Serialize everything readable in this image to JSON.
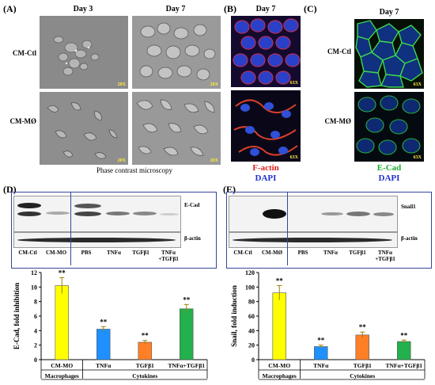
{
  "panels": {
    "A": {
      "label": "(A)",
      "day3": "Day 3",
      "day7": "Day 7",
      "row1": "CM-Ctl",
      "row2": "CM-MØ",
      "mag": "20X",
      "caption": "Phase contrast microscopy"
    },
    "B": {
      "label": "(B)",
      "day": "Day 7",
      "mag": "63X",
      "stain1": "F-actin",
      "stain2": "DAPI"
    },
    "C": {
      "label": "(C)",
      "day": "Day 7",
      "row1": "CM-Ctl",
      "row2": "CM-MØ",
      "mag": "63X",
      "stain1": "E-Cad",
      "stain2": "DAPI"
    },
    "D": {
      "label": "(D)",
      "band1": "E-Cad",
      "band2": "β-actin",
      "lanes": [
        "CM-Ctl",
        "CM-MO",
        "PBS",
        "TNFα",
        "TGFβ1",
        "TNFα +TGFβ1"
      ]
    },
    "E": {
      "label": "(E)",
      "band1": "Snail1",
      "band2": "β-actin",
      "lanes": [
        "CM-Ctl",
        "CM-MØ",
        "PBS",
        "TNFα",
        "TGFβ1",
        "TNFα +TGFβ1"
      ]
    }
  },
  "chart_data": [
    {
      "type": "bar",
      "categories": [
        "CM-MO",
        "TNFα",
        "TGFβ1",
        "TNFα+TGFβ1"
      ],
      "values": [
        10.2,
        4.2,
        2.4,
        7.0
      ],
      "errors": [
        1.1,
        0.35,
        0.25,
        0.6
      ],
      "colors": [
        "#ffff00",
        "#1e90ff",
        "#ff7f27",
        "#22b14c"
      ],
      "annotations": [
        "**",
        "**",
        "**",
        "**"
      ],
      "ylabel": "E-Cad, fold inhibition",
      "ylim": [
        0,
        12
      ],
      "yticks": [
        0,
        2,
        4,
        6,
        8,
        10,
        12
      ],
      "groups": [
        {
          "label": "Macrophages",
          "span": [
            0,
            0
          ]
        },
        {
          "label": "Cytokines",
          "span": [
            1,
            3
          ]
        }
      ]
    },
    {
      "type": "bar",
      "categories": [
        "CM-MO",
        "TNFα",
        "TGFβ1",
        "TNFα+TGFβ1"
      ],
      "values": [
        92,
        18,
        34,
        25
      ],
      "errors": [
        10,
        2,
        4,
        2
      ],
      "colors": [
        "#ffff00",
        "#1e90ff",
        "#ff7f27",
        "#22b14c"
      ],
      "annotations": [
        "**",
        "**",
        "**",
        "**"
      ],
      "ylabel": "Snail, fold induction",
      "ylim": [
        0,
        120
      ],
      "yticks": [
        0,
        20,
        40,
        60,
        80,
        100,
        120
      ],
      "groups": [
        {
          "label": "Macrophages",
          "span": [
            0,
            0
          ]
        },
        {
          "label": "Cytokines",
          "span": [
            1,
            3
          ]
        }
      ]
    }
  ]
}
